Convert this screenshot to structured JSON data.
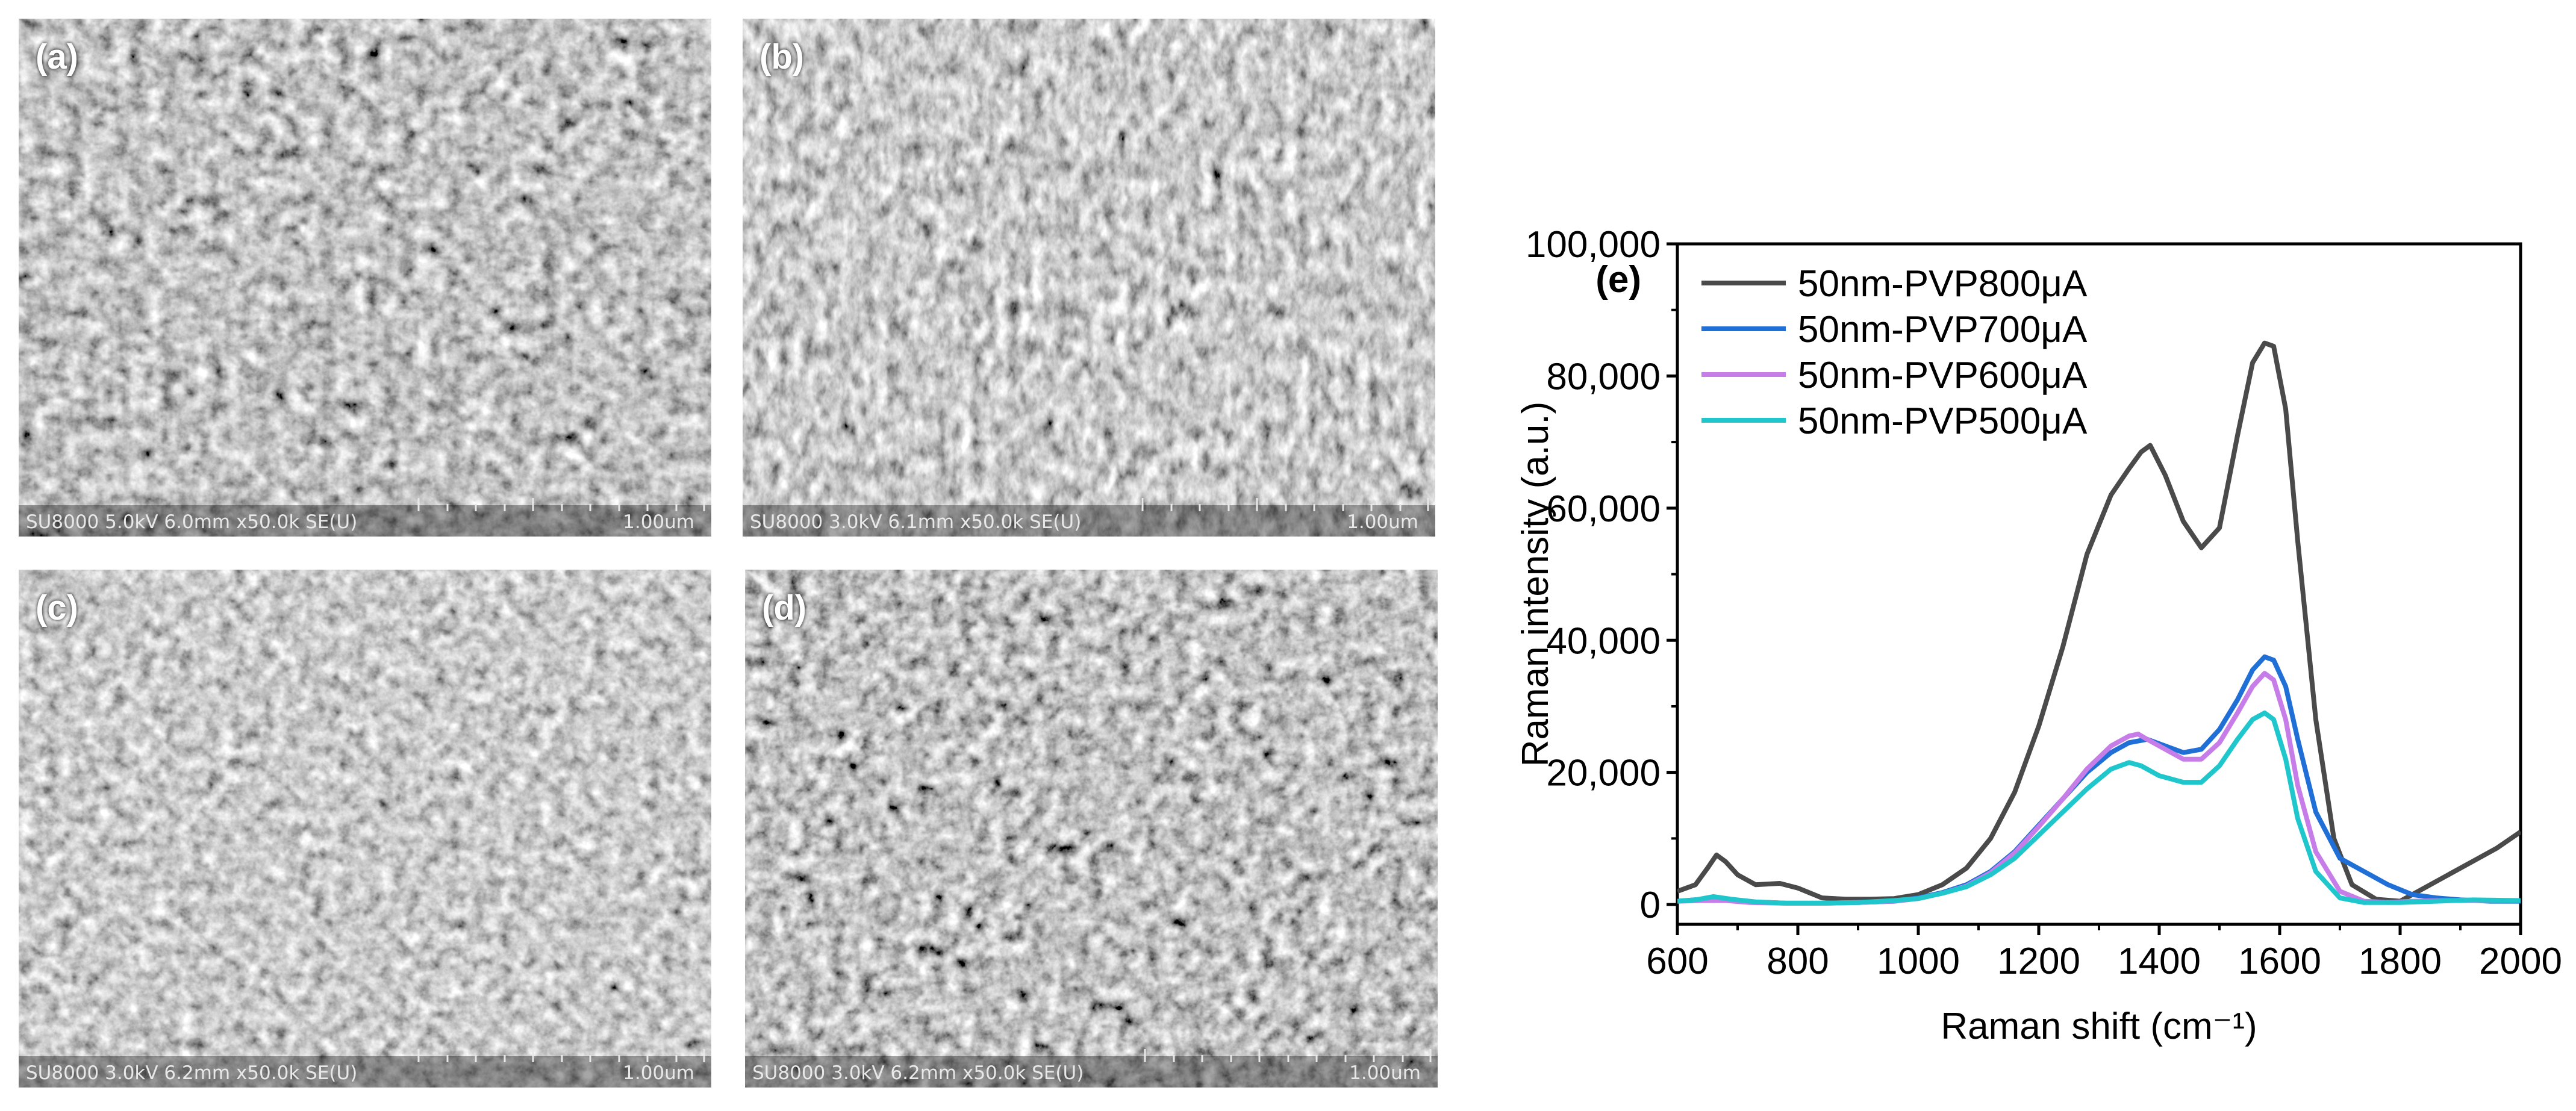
{
  "panels": [
    {
      "label": "(a)",
      "info": "SU8000 5.0kV 6.0mm x50.0k SE(U)",
      "scale": "1.00um"
    },
    {
      "label": "(b)",
      "info": "SU8000 3.0kV 6.1mm x50.0k SE(U)",
      "scale": "1.00um"
    },
    {
      "label": "(c)",
      "info": "SU8000 3.0kV 6.2mm x50.0k SE(U)",
      "scale": "1.00um"
    },
    {
      "label": "(d)",
      "info": "SU8000 3.0kV 6.2mm x50.0k SE(U)",
      "scale": "1.00um"
    }
  ],
  "chart_data": {
    "type": "line",
    "panel_label": "(e)",
    "xlabel": "Raman shift (cm⁻¹)",
    "ylabel": "Raman intensity (a.u.)",
    "xlim": [
      600,
      2000
    ],
    "ylim": [
      -3000,
      100000
    ],
    "xticks": [
      600,
      800,
      1000,
      1200,
      1400,
      1600,
      1800,
      2000
    ],
    "yticks": [
      0,
      20000,
      40000,
      60000,
      80000,
      100000
    ],
    "ytick_labels": [
      "0",
      "20,000",
      "40,000",
      "60,000",
      "80,000",
      "100,000"
    ],
    "grid": false,
    "legend_position": "top-left",
    "series": [
      {
        "name": "50nm-PVP800μA",
        "color": "#4a4a4a",
        "x": [
          600,
          630,
          650,
          665,
          680,
          700,
          730,
          770,
          800,
          840,
          880,
          920,
          960,
          1000,
          1040,
          1080,
          1120,
          1160,
          1200,
          1240,
          1280,
          1320,
          1350,
          1370,
          1385,
          1410,
          1440,
          1470,
          1500,
          1530,
          1555,
          1575,
          1590,
          1610,
          1630,
          1660,
          1690,
          1720,
          1760,
          1800,
          1840,
          1880,
          1920,
          1960,
          2000
        ],
        "y": [
          2000,
          3000,
          5500,
          7500,
          6500,
          4500,
          3000,
          3200,
          2500,
          1000,
          800,
          800,
          900,
          1500,
          3000,
          5500,
          10000,
          17000,
          27000,
          39000,
          53000,
          62000,
          66000,
          68500,
          69500,
          65000,
          58000,
          54000,
          57000,
          71000,
          82000,
          85000,
          84500,
          75000,
          55000,
          28000,
          10000,
          3000,
          800,
          500,
          2500,
          4500,
          6500,
          8500,
          11000
        ]
      },
      {
        "name": "50nm-PVP700μA",
        "color": "#1f6fd6",
        "x": [
          600,
          640,
          680,
          720,
          780,
          840,
          900,
          960,
          1000,
          1040,
          1080,
          1120,
          1160,
          1200,
          1240,
          1280,
          1320,
          1350,
          1380,
          1410,
          1440,
          1470,
          1500,
          1530,
          1555,
          1575,
          1590,
          1610,
          1630,
          1660,
          1700,
          1740,
          1780,
          1820,
          1860,
          1900,
          1950,
          2000
        ],
        "y": [
          500,
          800,
          800,
          400,
          200,
          200,
          300,
          500,
          1000,
          1800,
          3000,
          5000,
          8000,
          12000,
          16000,
          20000,
          23000,
          24500,
          25000,
          24000,
          23000,
          23500,
          26500,
          31000,
          35500,
          37500,
          37000,
          33000,
          25000,
          14000,
          7000,
          5000,
          3000,
          1500,
          1000,
          700,
          500,
          500
        ]
      },
      {
        "name": "50nm-PVP600μA",
        "color": "#c77de8",
        "x": [
          600,
          640,
          680,
          720,
          780,
          840,
          900,
          960,
          1000,
          1040,
          1080,
          1120,
          1160,
          1200,
          1240,
          1280,
          1320,
          1350,
          1365,
          1380,
          1410,
          1440,
          1470,
          1500,
          1530,
          1555,
          1575,
          1590,
          1610,
          1630,
          1660,
          1700,
          1740,
          1780,
          1820,
          1880,
          1940,
          2000
        ],
        "y": [
          500,
          600,
          600,
          300,
          200,
          200,
          300,
          500,
          900,
          1700,
          2800,
          4800,
          7800,
          11800,
          16000,
          20500,
          24000,
          25500,
          25800,
          25000,
          23500,
          22000,
          22000,
          24500,
          29000,
          33000,
          35000,
          34000,
          28000,
          18000,
          8000,
          2000,
          500,
          300,
          500,
          600,
          600,
          600
        ]
      },
      {
        "name": "50nm-PVP500μA",
        "color": "#1fc7cc",
        "x": [
          600,
          630,
          660,
          690,
          730,
          780,
          840,
          900,
          960,
          1000,
          1040,
          1080,
          1120,
          1160,
          1200,
          1240,
          1280,
          1320,
          1350,
          1370,
          1400,
          1440,
          1470,
          1500,
          1530,
          1555,
          1575,
          1590,
          1610,
          1630,
          1660,
          1700,
          1740,
          1800,
          1860,
          1920,
          2000
        ],
        "y": [
          500,
          700,
          1200,
          800,
          400,
          200,
          200,
          300,
          600,
          900,
          1700,
          2700,
          4500,
          7000,
          10500,
          14000,
          17500,
          20500,
          21500,
          21000,
          19500,
          18500,
          18500,
          21000,
          25000,
          28000,
          29000,
          28000,
          22000,
          13000,
          5000,
          1000,
          300,
          300,
          500,
          700,
          600
        ]
      }
    ]
  }
}
